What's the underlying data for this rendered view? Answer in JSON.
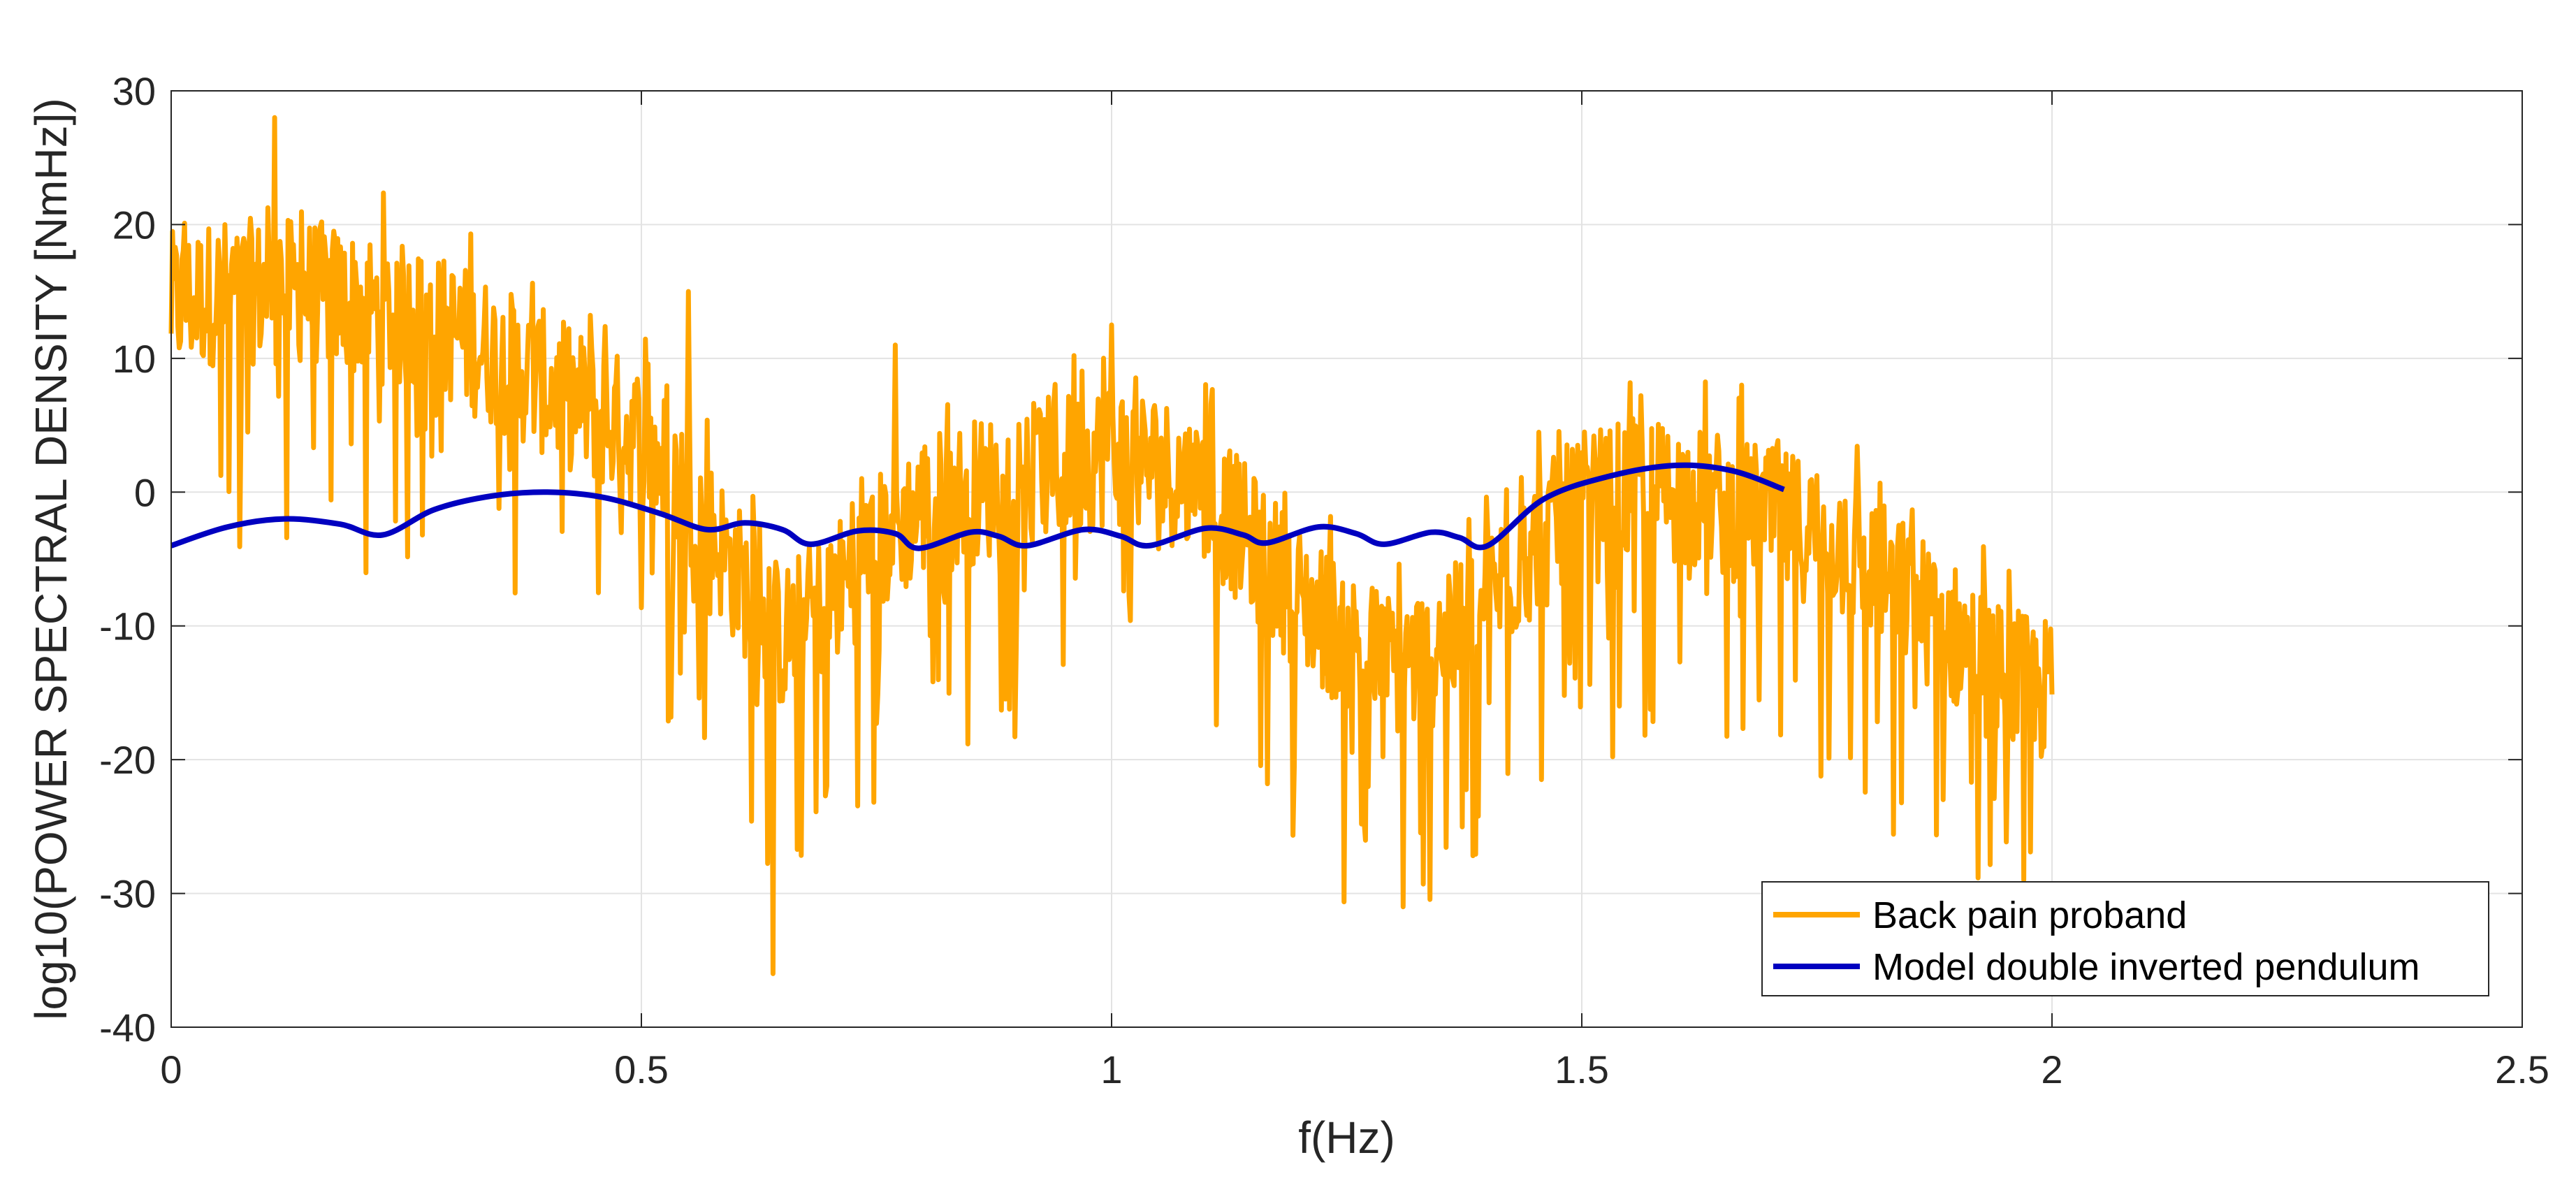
{
  "chart_data": {
    "type": "line",
    "title": "",
    "xlabel": "f(Hz)",
    "ylabel": "log10(POWER SPECTRAL DENSITY [NmHz])",
    "xlim": [
      0,
      2.5
    ],
    "ylim": [
      -40,
      30
    ],
    "x_ticks": [
      0,
      0.5,
      1,
      1.5,
      2,
      2.5
    ],
    "x_tick_labels": [
      "0",
      "0.5",
      "1",
      "1.5",
      "2",
      "2.5"
    ],
    "y_ticks": [
      -40,
      -30,
      -20,
      -10,
      0,
      10,
      20,
      30
    ],
    "y_tick_labels": [
      "-40",
      "-30",
      "-20",
      "-10",
      "0",
      "10",
      "20",
      "30"
    ],
    "grid": true,
    "legend_position": "bottom-right",
    "series": [
      {
        "name": "Back pain proband",
        "color": "#FFA500",
        "style": "noisy",
        "trend": {
          "x": [
            0,
            0.05,
            0.1,
            0.15,
            0.2,
            0.25,
            0.3,
            0.35,
            0.4,
            0.45,
            0.5,
            0.55,
            0.6,
            0.65,
            0.7,
            0.75,
            0.8,
            0.85,
            0.9,
            0.95,
            1.0,
            1.05,
            1.1,
            1.15,
            1.2,
            1.25,
            1.3,
            1.35,
            1.4,
            1.45,
            1.5,
            1.55,
            1.6,
            1.65,
            1.7,
            1.75,
            1.8,
            1.85,
            1.9,
            1.95,
            2.0
          ],
          "y": [
            14,
            15,
            15,
            15,
            14,
            13,
            12,
            10,
            8,
            6,
            4,
            0,
            -6,
            -11,
            -8,
            -4,
            -1,
            0,
            1,
            2,
            3,
            2,
            0,
            -4,
            -8,
            -11,
            -13,
            -12,
            -8,
            -4,
            -1,
            0,
            0,
            -1,
            -2,
            -3,
            -5,
            -8,
            -11,
            -14,
            -15
          ]
        },
        "spikes": [
          {
            "x": 0.11,
            "y": 28
          },
          {
            "x": 0.55,
            "y": 15
          },
          {
            "x": 0.64,
            "y": -36
          },
          {
            "x": 0.77,
            "y": 11
          },
          {
            "x": 1.0,
            "y": 12.5
          },
          {
            "x": 1.31,
            "y": -31
          },
          {
            "x": 1.67,
            "y": 8
          },
          {
            "x": 1.97,
            "y": -29
          }
        ]
      },
      {
        "name": "Model double inverted pendulum",
        "color": "#0000C0",
        "style": "smooth",
        "x": [
          0,
          0.06,
          0.12,
          0.18,
          0.225,
          0.28,
          0.34,
          0.4,
          0.46,
          0.52,
          0.57,
          0.61,
          0.65,
          0.68,
          0.73,
          0.77,
          0.795,
          0.85,
          0.88,
          0.91,
          0.97,
          1.01,
          1.04,
          1.1,
          1.14,
          1.165,
          1.22,
          1.26,
          1.29,
          1.34,
          1.37,
          1.4,
          1.46,
          1.53,
          1.6,
          1.66,
          1.715
        ],
        "y": [
          -4,
          -2.6,
          -2.0,
          -2.4,
          -3.2,
          -1.3,
          -0.3,
          0,
          -0.4,
          -1.6,
          -2.8,
          -2.3,
          -2.8,
          -3.9,
          -2.9,
          -3.1,
          -4.2,
          -3.0,
          -3.3,
          -4.0,
          -2.8,
          -3.3,
          -4.0,
          -2.7,
          -3.2,
          -3.8,
          -2.6,
          -3.1,
          -3.9,
          -3.0,
          -3.4,
          -4.0,
          -0.5,
          1.2,
          2.0,
          1.6,
          0.2
        ]
      }
    ]
  }
}
